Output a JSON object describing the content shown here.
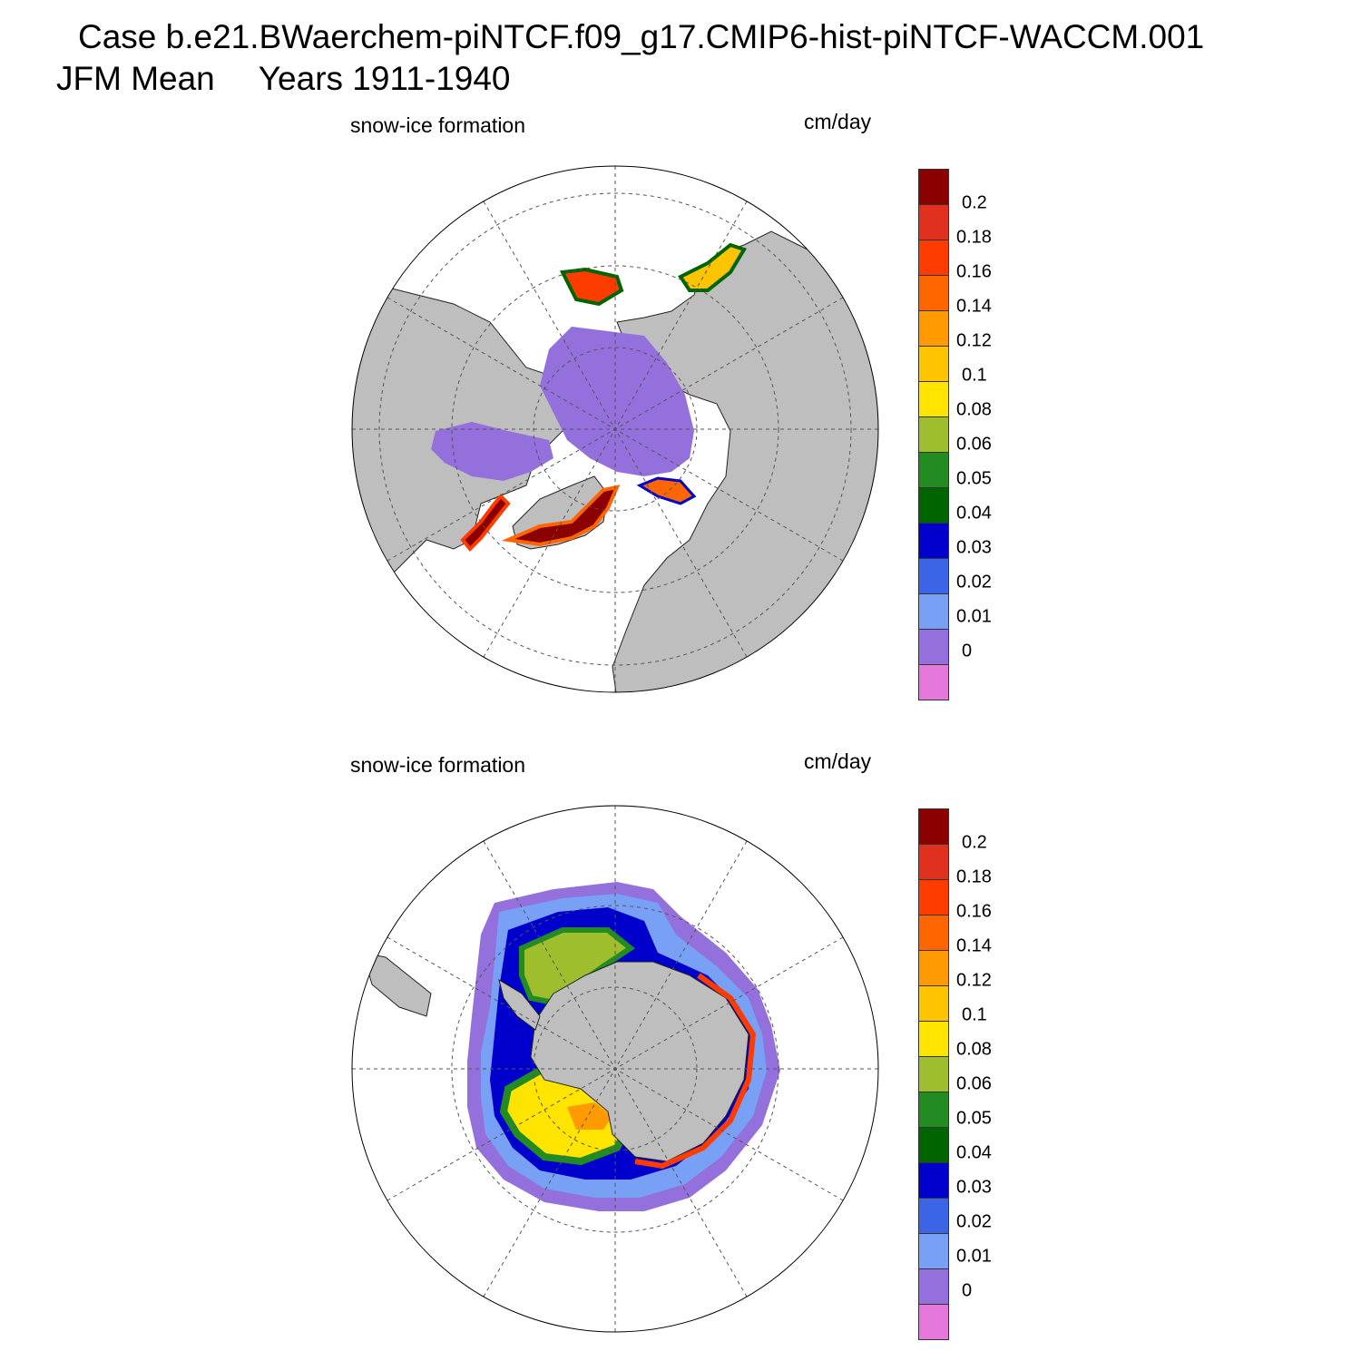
{
  "figure": {
    "title": "Case b.e21.BWaerchem-piNTCF.f09_g17.CMIP6-hist-piNTCF-WACCM.001",
    "season": "JFM Mean",
    "years": "Years 1911-1940"
  },
  "panels": [
    {
      "id": "north",
      "variable_label": "snow-ice formation",
      "units_label": "cm/day",
      "hemisphere": "northern"
    },
    {
      "id": "south",
      "variable_label": "snow-ice formation",
      "units_label": "cm/day",
      "hemisphere": "southern"
    }
  ],
  "colorbar": {
    "levels": [
      "0.2",
      "0.18",
      "0.16",
      "0.14",
      "0.12",
      "0.1",
      "0.08",
      "0.06",
      "0.05",
      "0.04",
      "0.03",
      "0.02",
      "0.01",
      "0"
    ],
    "colors": [
      "#8b0000",
      "#e0301e",
      "#ff3c00",
      "#ff6600",
      "#ff9a00",
      "#ffc400",
      "#ffe400",
      "#9fbe2e",
      "#228b22",
      "#006400",
      "#0000cd",
      "#3c64e6",
      "#78a0f5",
      "#9370db",
      "#e678dc"
    ]
  },
  "map_colors": {
    "land": "#bebebe",
    "ocean": "#ffffff",
    "grid": "#555555"
  }
}
